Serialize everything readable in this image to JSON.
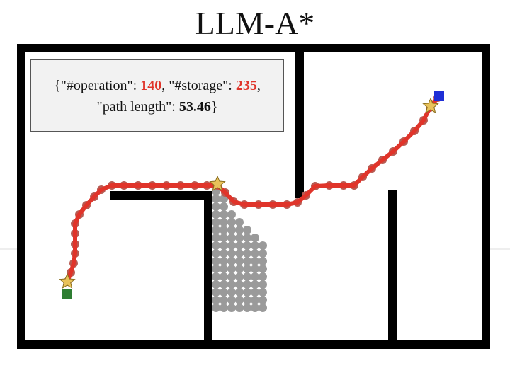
{
  "title": "LLM-A*",
  "stats": {
    "operation_key": "\"#operation\": ",
    "operation_value": "140",
    "storage_key": "\"#storage\": ",
    "storage_value": "235",
    "path_length_key": "\"path length\": ",
    "path_length_value": "53.46"
  },
  "colors": {
    "wall": "#000000",
    "path": "#e0342a",
    "explored": "#9a9a9a",
    "start": "#2e7d32",
    "goal": "#1f2fd6",
    "waypoint": "#e8c25a",
    "box_bg": "#f2f2f2"
  },
  "icons": {
    "start": "green-square-icon",
    "goal": "blue-square-icon",
    "waypoint": "star-icon"
  }
}
